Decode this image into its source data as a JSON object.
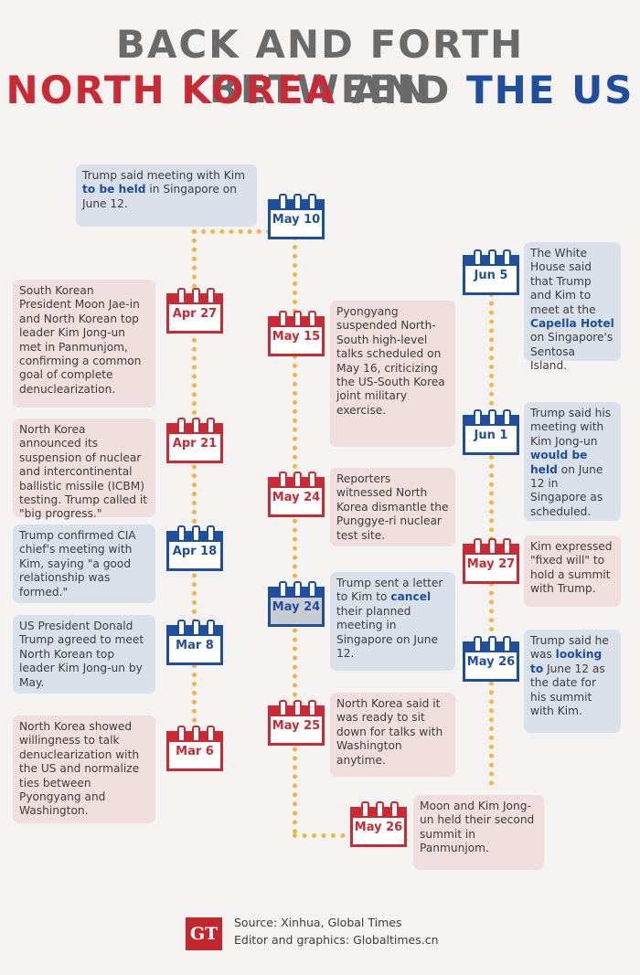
{
  "title": {
    "line1": "BACK AND FORTH BETWEEN",
    "part1": "NORTH KOREA",
    "part2": "AND",
    "part3": "THE US"
  },
  "events": [
    {
      "date": "May 10",
      "text": "Trump said meeting with Kim to be held in Singapore on June 12."
    },
    {
      "date": "Apr 27",
      "text": "South Korean President Moon Jae-in and North Korean top leader Kim Jong-un met in Panmunjom, confirming a common goal of complete denuclearization."
    },
    {
      "date": "Apr 21",
      "text": "North Korea announced its suspension of nuclear and intercontinental ballistic missile (ICBM) testing. Trump called it \"big progress.\""
    },
    {
      "date": "Apr 18",
      "text": "Trump confirmed CIA chief's meeting with Kim, saying \"a good relationship was formed.\""
    },
    {
      "date": "Mar 8",
      "text": "US President Donald Trump agreed to meet North Korean top leader Kim Jong-un by May."
    },
    {
      "date": "Mar 6",
      "text": "North Korea showed willingness to talk denuclearization with the US and normalize ties between Pyongyang and Washington."
    },
    {
      "date": "May 15",
      "text": "Pyongyang suspended North-South high-level talks scheduled on May 16, criticizing the US-South Korea joint military exercise."
    },
    {
      "date": "May 24",
      "text": "Reporters witnessed North Korea dismantle the Punggye-ri nuclear test site."
    },
    {
      "date": "May 24",
      "text": "Trump sent a letter to Kim to cancel their planned meeting in Singapore on June 12."
    },
    {
      "date": "May 25",
      "text": "North Korea said it was ready to sit down for talks with Washington anytime."
    },
    {
      "date": "May 26",
      "text": "Moon and Kim Jong-un held their second summit in Panmunjom."
    },
    {
      "date": "Jun 5",
      "text": "The White House said that Trump and Kim to meet at the Capella Hotel on Singapore's Sentosa Island."
    },
    {
      "date": "Jun 1",
      "text": "Trump said his meeting with Kim Jong-un would be held on June 12 in Singapore as scheduled."
    },
    {
      "date": "May 27",
      "text": "Kim expressed \"fixed will\" to hold a summit with Trump."
    },
    {
      "date": "May 26",
      "text": "Trump said he was looking to June 12 as the date for his summit with Kim."
    }
  ],
  "footer": {
    "logo": "GT",
    "source": "Source: Xinhua, Global Times",
    "editor": "Editor and graphics: Globaltimes.cn"
  },
  "colors": {
    "red": "#c92a33",
    "blue": "#1f4f9c",
    "dots": "#f2b63f",
    "pink_box": "#f0dddd",
    "blue_box": "#d9e0ea"
  }
}
